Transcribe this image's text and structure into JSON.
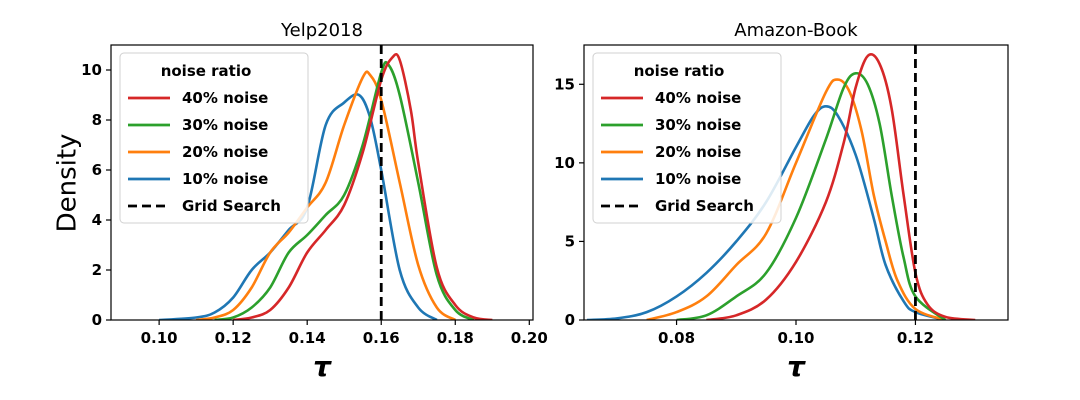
{
  "figure": {
    "ylabel": "Density"
  },
  "chart_data": [
    {
      "type": "line",
      "title": "Yelp2018",
      "xlabel": "τ",
      "ylabel": "Density",
      "xlim": [
        0.087,
        0.201
      ],
      "ylim": [
        0,
        11.0
      ],
      "xticks": [
        "0.10",
        "0.12",
        "0.14",
        "0.16",
        "0.18",
        "0.20"
      ],
      "xtick_values": [
        0.1,
        0.12,
        0.14,
        0.16,
        0.18,
        0.2
      ],
      "yticks": [
        "0",
        "2",
        "4",
        "6",
        "8",
        "10"
      ],
      "ytick_values": [
        0,
        2,
        4,
        6,
        8,
        10
      ],
      "grid": false,
      "legend": {
        "title": "noise ratio",
        "placement": "top-left"
      },
      "reference_line": {
        "label": "Grid Search",
        "x": 0.16,
        "style": "dashed",
        "color": "#000000"
      },
      "series": [
        {
          "name": "40% noise",
          "color": "#d62728",
          "x": [
            0.12,
            0.125,
            0.13,
            0.135,
            0.14,
            0.145,
            0.15,
            0.155,
            0.16,
            0.163,
            0.165,
            0.168,
            0.17,
            0.175,
            0.18,
            0.185,
            0.19
          ],
          "y": [
            0,
            0.1,
            0.4,
            1.3,
            2.7,
            3.6,
            4.6,
            6.7,
            9.6,
            10.5,
            10.4,
            8.4,
            6.3,
            2.1,
            0.6,
            0.1,
            0
          ]
        },
        {
          "name": "30% noise",
          "color": "#2ca02c",
          "x": [
            0.115,
            0.12,
            0.125,
            0.13,
            0.135,
            0.14,
            0.145,
            0.15,
            0.155,
            0.16,
            0.162,
            0.165,
            0.17,
            0.175,
            0.18,
            0.185
          ],
          "y": [
            0,
            0.1,
            0.5,
            1.3,
            2.7,
            3.4,
            4.2,
            5.0,
            7.0,
            9.9,
            10.2,
            9.0,
            5.5,
            1.8,
            0.4,
            0
          ]
        },
        {
          "name": "20% noise",
          "color": "#ff7f0e",
          "x": [
            0.11,
            0.115,
            0.12,
            0.125,
            0.13,
            0.135,
            0.14,
            0.145,
            0.15,
            0.155,
            0.157,
            0.16,
            0.165,
            0.17,
            0.175,
            0.18
          ],
          "y": [
            0,
            0.1,
            0.4,
            1.3,
            2.7,
            3.5,
            4.5,
            5.5,
            7.8,
            9.7,
            9.8,
            8.8,
            5.5,
            2.2,
            0.5,
            0
          ]
        },
        {
          "name": "10% noise",
          "color": "#1f77b4",
          "x": [
            0.1,
            0.11,
            0.115,
            0.12,
            0.125,
            0.13,
            0.135,
            0.14,
            0.145,
            0.15,
            0.154,
            0.157,
            0.16,
            0.165,
            0.17,
            0.175
          ],
          "y": [
            0,
            0.1,
            0.3,
            0.9,
            2.0,
            2.7,
            3.6,
            4.5,
            7.8,
            8.7,
            9.0,
            8.1,
            6.0,
            2.0,
            0.5,
            0
          ]
        }
      ]
    },
    {
      "type": "line",
      "title": "Amazon-Book",
      "xlabel": "τ",
      "ylabel": "",
      "xlim": [
        0.0645,
        0.1355
      ],
      "ylim": [
        0,
        17.5
      ],
      "xticks": [
        "0.08",
        "0.10",
        "0.12"
      ],
      "xtick_values": [
        0.08,
        0.1,
        0.12
      ],
      "yticks": [
        "0",
        "5",
        "10",
        "15"
      ],
      "ytick_values": [
        0,
        5,
        10,
        15
      ],
      "grid": false,
      "legend": {
        "title": "noise ratio",
        "placement": "top-left"
      },
      "reference_line": {
        "label": "Grid Search",
        "x": 0.12,
        "style": "dashed",
        "color": "#000000"
      },
      "series": [
        {
          "name": "40% noise",
          "color": "#d62728",
          "x": [
            0.085,
            0.09,
            0.095,
            0.1,
            0.105,
            0.108,
            0.11,
            0.112,
            0.114,
            0.116,
            0.118,
            0.12,
            0.122,
            0.125,
            0.13
          ],
          "y": [
            0,
            0.3,
            1.3,
            3.7,
            7.5,
            11.3,
            14.8,
            16.8,
            16.3,
            13.5,
            8.0,
            3.0,
            1.0,
            0.2,
            0
          ]
        },
        {
          "name": "30% noise",
          "color": "#2ca02c",
          "x": [
            0.08,
            0.085,
            0.09,
            0.095,
            0.1,
            0.105,
            0.108,
            0.11,
            0.112,
            0.114,
            0.116,
            0.118,
            0.12,
            0.125
          ],
          "y": [
            0,
            0.3,
            1.5,
            3.0,
            6.5,
            11.5,
            14.8,
            15.7,
            15.0,
            12.5,
            8.0,
            4.0,
            1.5,
            0
          ]
        },
        {
          "name": "20% noise",
          "color": "#ff7f0e",
          "x": [
            0.075,
            0.08,
            0.085,
            0.09,
            0.095,
            0.1,
            0.105,
            0.107,
            0.109,
            0.111,
            0.113,
            0.115,
            0.117,
            0.12,
            0.125
          ],
          "y": [
            0,
            0.5,
            1.5,
            3.5,
            5.5,
            10.0,
            14.5,
            15.3,
            14.5,
            12.0,
            8.0,
            5.0,
            2.5,
            0.7,
            0
          ]
        },
        {
          "name": "10% noise",
          "color": "#1f77b4",
          "x": [
            0.065,
            0.07,
            0.075,
            0.08,
            0.085,
            0.09,
            0.095,
            0.1,
            0.103,
            0.105,
            0.107,
            0.11,
            0.113,
            0.115,
            0.118,
            0.12,
            0.125
          ],
          "y": [
            0,
            0.1,
            0.5,
            1.5,
            3.0,
            5.0,
            7.5,
            11.0,
            13.0,
            13.6,
            13.0,
            10.5,
            6.5,
            3.5,
            1.2,
            0.5,
            0
          ]
        }
      ]
    }
  ]
}
